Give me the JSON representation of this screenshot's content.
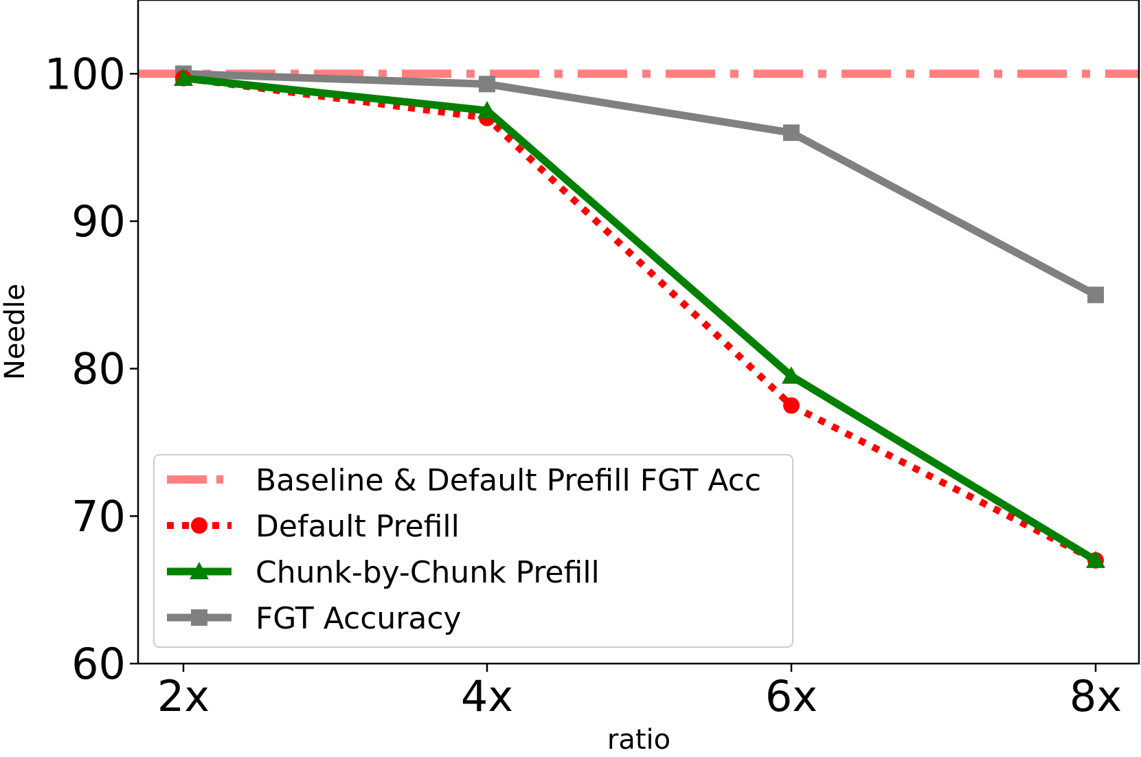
{
  "chart_data": {
    "type": "line",
    "title": "",
    "xlabel": "ratio",
    "ylabel": "Needle",
    "ylim": [
      60,
      105
    ],
    "yticks": [
      60,
      70,
      80,
      90,
      100
    ],
    "categories": [
      "2x",
      "4x",
      "6x",
      "8x"
    ],
    "grid": false,
    "legend_position": "bottom-left",
    "baseline": {
      "name": "Baseline & Default Prefill FGT Acc",
      "value": 100,
      "color": "#ff8080",
      "style": "dash-dot"
    },
    "series": [
      {
        "name": "Default Prefill",
        "values": [
          99.7,
          97.0,
          77.5,
          67.0
        ],
        "color": "#ff0000",
        "style": "dotted",
        "marker": "circle"
      },
      {
        "name": "Chunk-by-Chunk Prefill",
        "values": [
          99.7,
          97.5,
          79.5,
          67.0
        ],
        "color": "#008000",
        "style": "solid",
        "marker": "triangle"
      },
      {
        "name": "FGT Accuracy",
        "values": [
          100,
          99.3,
          96.0,
          85.0
        ],
        "color": "#808080",
        "style": "solid",
        "marker": "square"
      }
    ]
  }
}
